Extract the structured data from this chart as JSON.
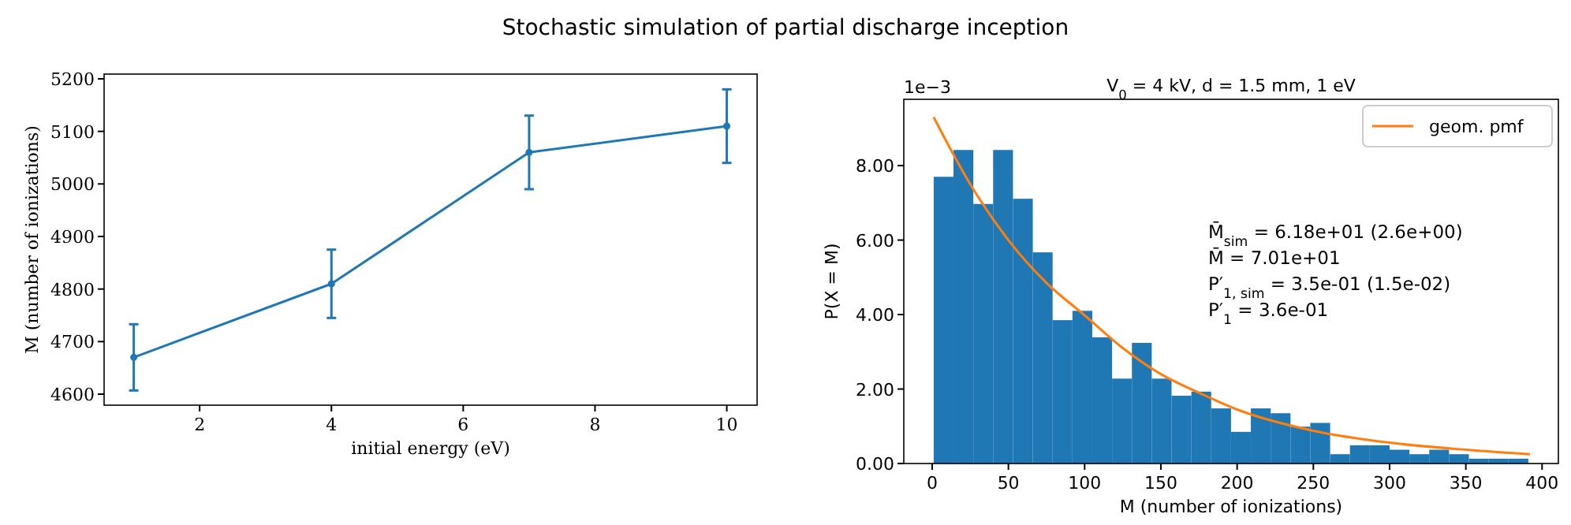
{
  "chart_data": [
    {
      "type": "line",
      "title": "Stochastic simulation of partial discharge inception",
      "xlabel": "initial energy (eV)",
      "ylabel": "M (number of ionizations)",
      "x": [
        1,
        4,
        7,
        10
      ],
      "series": [
        {
          "color": "#1f77b4",
          "values": [
            4670,
            4810,
            5060,
            5110
          ],
          "errors": [
            63,
            65,
            70,
            70
          ]
        }
      ],
      "xlim": [
        0.55,
        10.46
      ],
      "ylim": [
        4579,
        5209
      ],
      "xticks": [
        2,
        4,
        6,
        8,
        10
      ],
      "yticks": [
        4600,
        4700,
        4800,
        4900,
        5000,
        5100,
        5200
      ],
      "marker": "circle",
      "grid": false
    },
    {
      "type": "histogram",
      "subtitle": "V$_{0}$ = 4 kV, d = 1.5 mm, 1 eV",
      "xlabel": "M (number of ionizations)",
      "ylabel": "P(X = M)",
      "bins": [
        1,
        14,
        27,
        40,
        53,
        66,
        79,
        92,
        105,
        118,
        131,
        144,
        157,
        170,
        183,
        196,
        209,
        222,
        235,
        248,
        261,
        274,
        287,
        300,
        313,
        326,
        339,
        352,
        365,
        378,
        391
      ],
      "values": [
        7.7,
        8.42,
        6.97,
        8.42,
        7.11,
        5.67,
        3.85,
        4.1,
        3.39,
        2.28,
        3.24,
        2.28,
        1.82,
        1.93,
        1.48,
        0.85,
        1.48,
        1.35,
        0.99,
        1.09,
        0.25,
        0.49,
        0.49,
        0.37,
        0.25,
        0.37,
        0.25,
        0.13,
        0.13,
        0.13
      ],
      "color": "#1f77b4",
      "series": [
        {
          "type": "line",
          "name": "geom. pmf",
          "color": "#ff7f0e",
          "x": [
            1,
            25,
            50,
            75,
            100,
            125,
            150,
            175,
            200,
            250,
            300,
            350,
            392
          ],
          "values": [
            9.3,
            7.5,
            6.0,
            4.85,
            3.98,
            3.1,
            2.4,
            1.9,
            1.45,
            0.88,
            0.56,
            0.37,
            0.25
          ]
        }
      ],
      "xlim": [
        -18.6,
        410.7
      ],
      "ylim": [
        0,
        9.78
      ],
      "xticks": [
        0,
        50,
        100,
        150,
        200,
        250,
        300,
        350,
        400
      ],
      "yticks": [
        {
          "value": 0,
          "label": "0.00"
        },
        {
          "value": 2,
          "label": "2.00"
        },
        {
          "value": 4,
          "label": "4.00"
        },
        {
          "value": 6,
          "label": "6.00"
        },
        {
          "value": 8,
          "label": "8.00"
        }
      ],
      "legend": "top right",
      "grid": false,
      "annotations": [
        "1e−3",
        "M̄$_{sim}$ = 6.18e+01 (2.6e+00)",
        "M̄ = 7.01e+01",
        "P′$_{1, sim}$ = 3.5e-01 (1.5e-02)",
        "P′$_{1}$ = 3.6e-01"
      ]
    }
  ]
}
